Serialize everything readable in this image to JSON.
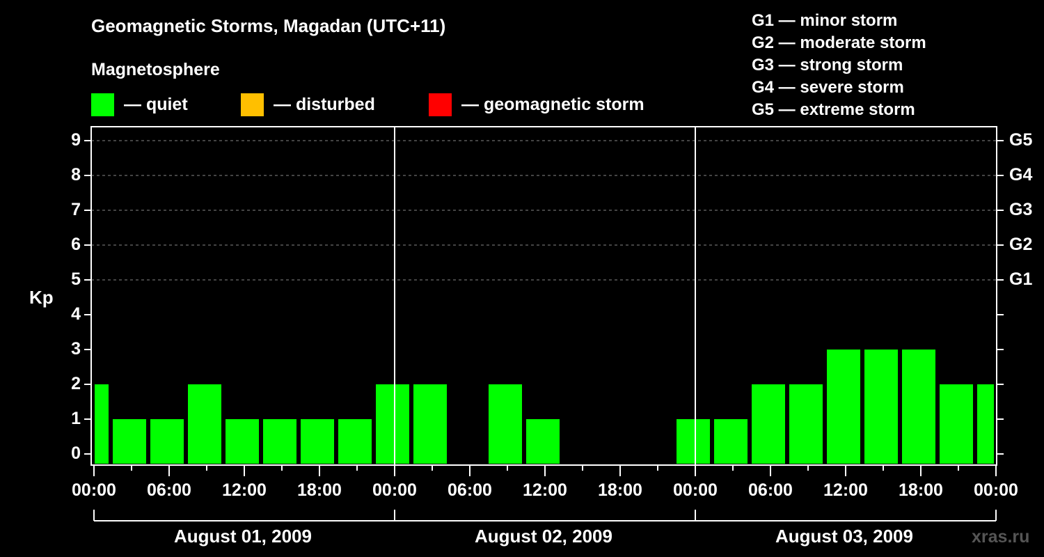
{
  "header": {
    "title": "Geomagnetic Storms, Magadan (UTC+11)",
    "subtitle": "Magnetosphere"
  },
  "legend": [
    {
      "label": "— quiet",
      "color": "#00ff00"
    },
    {
      "label": "— disturbed",
      "color": "#ffbf00"
    },
    {
      "label": "— geomagnetic storm",
      "color": "#ff0000"
    }
  ],
  "g_legend": [
    "G1 — minor storm",
    "G2 — moderate storm",
    "G3 — strong storm",
    "G4 — severe storm",
    "G5 — extreme storm"
  ],
  "watermark": "xras.ru",
  "chart_data": {
    "type": "bar",
    "title": "Geomagnetic Storms, Magadan (UTC+11)",
    "subtitle": "Magnetosphere",
    "xlabel": "",
    "ylabel": "Kp",
    "ylim": [
      0,
      9
    ],
    "yticks": [
      "0",
      "1",
      "2",
      "3",
      "4",
      "5",
      "6",
      "7",
      "8",
      "9"
    ],
    "right_ticks": [
      {
        "kp": 5,
        "label": "G1"
      },
      {
        "kp": 6,
        "label": "G2"
      },
      {
        "kp": 7,
        "label": "G3"
      },
      {
        "kp": 8,
        "label": "G4"
      },
      {
        "kp": 9,
        "label": "G5"
      }
    ],
    "xticks": [
      "00:00",
      "06:00",
      "12:00",
      "18:00",
      "00:00",
      "06:00",
      "12:00",
      "18:00",
      "00:00",
      "06:00",
      "12:00",
      "18:00",
      "00:00"
    ],
    "days": [
      "August 01, 2009",
      "August 02, 2009",
      "August 03, 2009"
    ],
    "grid": "dashed horizontal at Kp 5-9",
    "interval_hours": 3,
    "first_bar_start_hour_local": -1.5,
    "categories": [
      "Jul 31 22:30",
      "Aug 01 01:30",
      "Aug 01 04:30",
      "Aug 01 07:30",
      "Aug 01 10:30",
      "Aug 01 13:30",
      "Aug 01 16:30",
      "Aug 01 19:30",
      "Aug 01 22:30",
      "Aug 02 01:30",
      "Aug 02 04:30",
      "Aug 02 07:30",
      "Aug 02 10:30",
      "Aug 02 13:30",
      "Aug 02 16:30",
      "Aug 02 19:30",
      "Aug 02 22:30",
      "Aug 03 01:30",
      "Aug 03 04:30",
      "Aug 03 07:30",
      "Aug 03 10:30",
      "Aug 03 13:30",
      "Aug 03 16:30",
      "Aug 03 19:30",
      "Aug 03 22:30"
    ],
    "values": [
      2,
      1,
      1,
      2,
      1,
      1,
      1,
      1,
      2,
      2,
      0,
      2,
      1,
      0,
      0,
      0,
      1,
      1,
      2,
      2,
      3,
      3,
      3,
      2,
      2
    ],
    "bar_color": "#00ff00",
    "legend_position": "top"
  }
}
